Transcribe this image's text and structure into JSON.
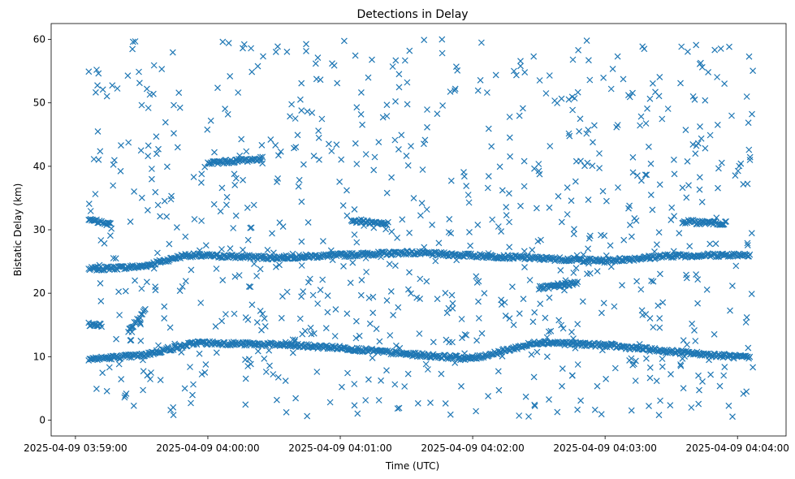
{
  "chart_data": {
    "type": "scatter",
    "title": "Detections in Delay",
    "xlabel": "Time (UTC)",
    "ylabel": "Bistatic Delay (km)",
    "marker": "x",
    "color": "#1f77b4",
    "x_unit": "seconds",
    "xlim": [
      "2025-04-09 03:58:49",
      "2025-04-09 04:04:22"
    ],
    "ylim": [
      -2.5,
      62.5
    ],
    "x_ticks": [
      "2025-04-09 03:59:00",
      "2025-04-09 04:00:00",
      "2025-04-09 04:01:00",
      "2025-04-09 04:02:00",
      "2025-04-09 04:03:00",
      "2025-04-09 04:04:00"
    ],
    "y_ticks": [
      0,
      10,
      20,
      30,
      40,
      50,
      60
    ],
    "grid": false,
    "x_range_data": [
      "2025-04-09 03:59:06",
      "2025-04-09 04:04:07"
    ],
    "tracks": [
      {
        "x": [
          "2025-04-09 03:59:06",
          "2025-04-09 03:59:30",
          "2025-04-09 03:59:50",
          "2025-04-09 04:00:30",
          "2025-04-09 04:01:30",
          "2025-04-09 04:02:30",
          "2025-04-09 04:03:00",
          "2025-04-09 04:03:30",
          "2025-04-09 04:04:06"
        ],
        "y": [
          23.8,
          24.2,
          26.0,
          25.6,
          26.4,
          25.5,
          25.1,
          25.9,
          26.1
        ]
      },
      {
        "x": [
          "2025-04-09 03:59:06",
          "2025-04-09 03:59:30",
          "2025-04-09 03:59:55",
          "2025-04-09 04:00:30",
          "2025-04-09 04:01:00",
          "2025-04-09 04:01:30",
          "2025-04-09 04:02:00",
          "2025-04-09 04:02:30",
          "2025-04-09 04:03:00",
          "2025-04-09 04:03:30",
          "2025-04-09 04:04:06"
        ],
        "y": [
          9.6,
          10.2,
          12.2,
          11.9,
          11.4,
          10.4,
          9.7,
          12.3,
          11.8,
          10.8,
          9.8
        ]
      },
      {
        "x": [
          "2025-04-09 03:59:24",
          "2025-04-09 03:59:32"
        ],
        "y": [
          14.0,
          17.5
        ]
      },
      {
        "x": [
          "2025-04-09 04:00:00",
          "2025-04-09 04:00:25"
        ],
        "y": [
          40.5,
          41.2
        ]
      },
      {
        "x": [
          "2025-04-09 04:01:05",
          "2025-04-09 04:01:22"
        ],
        "y": [
          31.5,
          30.9
        ]
      },
      {
        "x": [
          "2025-04-09 04:02:30",
          "2025-04-09 04:02:48"
        ],
        "y": [
          20.8,
          21.6
        ]
      },
      {
        "x": [
          "2025-04-09 04:03:35",
          "2025-04-09 04:03:55"
        ],
        "y": [
          31.3,
          31.0
        ]
      },
      {
        "x": [
          "2025-04-09 03:59:06",
          "2025-04-09 03:59:16"
        ],
        "y": [
          31.6,
          30.8
        ]
      },
      {
        "x": [
          "2025-04-09 03:59:06",
          "2025-04-09 03:59:12"
        ],
        "y": [
          15.1,
          15.0
        ]
      }
    ],
    "scatter_count": 850,
    "scatter_y_range": [
      0.5,
      60
    ],
    "seed": 7
  }
}
